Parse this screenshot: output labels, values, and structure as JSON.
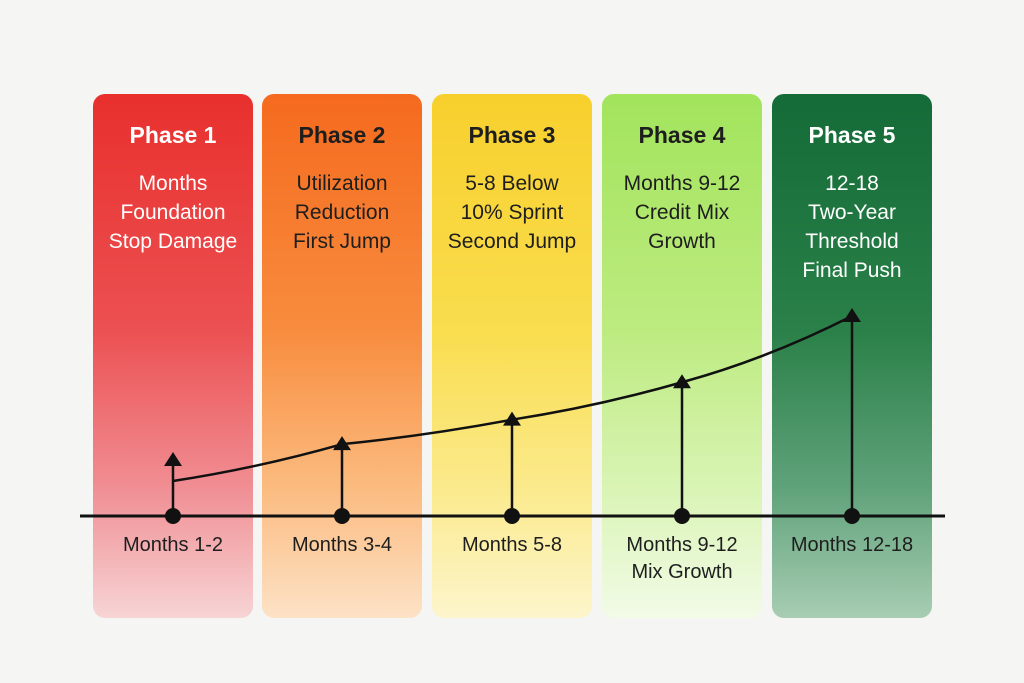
{
  "phases": [
    {
      "title": "Phase 1",
      "description": [
        "Months",
        "Foundation",
        "Stop Damage"
      ],
      "bottom_label": [
        "Months 1-2"
      ],
      "color": "#e8302d",
      "arrow_level": 0.0
    },
    {
      "title": "Phase 2",
      "description": [
        "Utilization",
        "Reduction",
        "First Jump"
      ],
      "bottom_label": [
        "Months 3-4"
      ],
      "color": "#f56a1e",
      "arrow_level": 0.11
    },
    {
      "title": "Phase 3",
      "description": [
        "5-8 Below",
        "10% Sprint",
        "Second Jump"
      ],
      "bottom_label": [
        "Months 5-8"
      ],
      "color": "#f8d02d",
      "arrow_level": 0.28
    },
    {
      "title": "Phase 4",
      "description": [
        "Months 9-12",
        "Credit Mix",
        "Growth"
      ],
      "bottom_label": [
        "Months 9-12",
        "Mix Growth"
      ],
      "color": "#a2e45c",
      "arrow_level": 0.54
    },
    {
      "title": "Phase 5",
      "description": [
        "12-18",
        "Two-Year",
        "Threshold",
        "Final Push"
      ],
      "bottom_label": [
        "Months 12-18"
      ],
      "color": "#146b37",
      "arrow_level": 1.0
    }
  ],
  "timeline": {
    "line_color": "#111111",
    "curve_shape": "rising exponential"
  }
}
